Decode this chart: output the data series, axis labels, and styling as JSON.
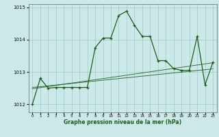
{
  "title": "Graphe pression niveau de la mer (hPa)",
  "bg_color": "#cce8e8",
  "grid_color": "#99cccc",
  "line_color": "#1a5c1a",
  "ylim": [
    1011.75,
    1015.1
  ],
  "xlim": [
    -0.5,
    23.5
  ],
  "yticks": [
    1012,
    1013,
    1014,
    1015
  ],
  "xticks": [
    0,
    1,
    2,
    3,
    4,
    5,
    6,
    7,
    8,
    9,
    10,
    11,
    12,
    13,
    14,
    15,
    16,
    17,
    18,
    19,
    20,
    21,
    22,
    23
  ],
  "hours": [
    0,
    1,
    2,
    3,
    4,
    5,
    6,
    7,
    8,
    9,
    10,
    11,
    12,
    13,
    14,
    15,
    16,
    17,
    18,
    19,
    20,
    21,
    22,
    23
  ],
  "pressure": [
    1012.0,
    1012.8,
    1012.5,
    1012.52,
    1012.52,
    1012.52,
    1012.52,
    1012.52,
    1013.75,
    1014.05,
    1014.05,
    1014.75,
    1014.88,
    1014.45,
    1014.1,
    1014.1,
    1013.35,
    1013.35,
    1013.1,
    1013.05,
    1013.05,
    1014.1,
    1012.6,
    1013.3
  ],
  "trend1": [
    1012.52,
    1012.545,
    1012.57,
    1012.595,
    1012.62,
    1012.645,
    1012.67,
    1012.695,
    1012.72,
    1012.745,
    1012.77,
    1012.795,
    1012.82,
    1012.845,
    1012.87,
    1012.895,
    1012.92,
    1012.945,
    1012.97,
    1012.995,
    1013.02,
    1013.045,
    1013.07,
    1013.095
  ],
  "trend2": [
    1012.48,
    1012.515,
    1012.55,
    1012.585,
    1012.62,
    1012.655,
    1012.69,
    1012.725,
    1012.76,
    1012.795,
    1012.83,
    1012.865,
    1012.9,
    1012.935,
    1012.97,
    1013.005,
    1013.04,
    1013.075,
    1013.11,
    1013.145,
    1013.18,
    1013.215,
    1013.25,
    1013.285
  ]
}
